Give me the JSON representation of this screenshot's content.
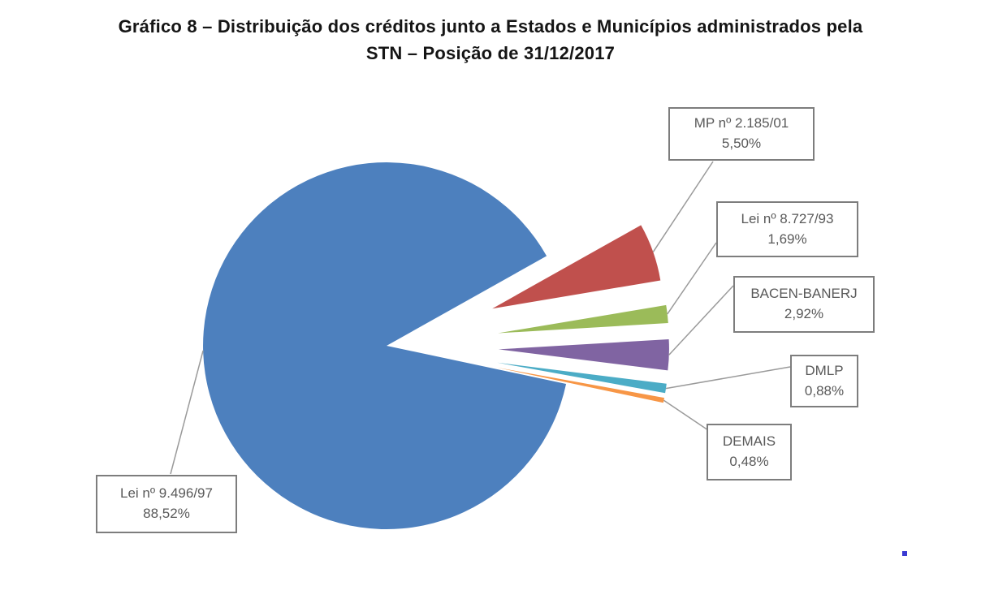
{
  "title": {
    "line1": "Gráfico 8 – Distribuição dos créditos junto a Estados e Municípios administrados pela",
    "line2": "STN – Posição de 31/12/2017"
  },
  "chart_data": {
    "type": "pie",
    "title": "Gráfico 8 – Distribuição dos créditos junto a Estados e Municípios administrados pela STN – Posição de 31/12/2017",
    "unit": "%",
    "legend_position": "none",
    "label_style": "boxed callouts with gray leader lines",
    "slices": [
      {
        "label": "Lei nº 9.496/97",
        "display": "88,52%",
        "value": 88.52,
        "color": "#4d80be",
        "exploded": false
      },
      {
        "label": "MP nº 2.185/01",
        "display": "5,50%",
        "value": 5.5,
        "color": "#c0504d",
        "exploded": true
      },
      {
        "label": "Lei nº 8.727/93",
        "display": "1,69%",
        "value": 1.69,
        "color": "#9bbb59",
        "exploded": true
      },
      {
        "label": "BACEN-BANERJ",
        "display": "2,92%",
        "value": 2.92,
        "color": "#8064a2",
        "exploded": true
      },
      {
        "label": "DMLP",
        "display": "0,88%",
        "value": 0.88,
        "color": "#4bacc6",
        "exploded": true
      },
      {
        "label": "DEMAIS",
        "display": "0,48%",
        "value": 0.48,
        "color": "#f79646",
        "exploded": true
      }
    ],
    "artifact_color": "#3a3ad2"
  }
}
